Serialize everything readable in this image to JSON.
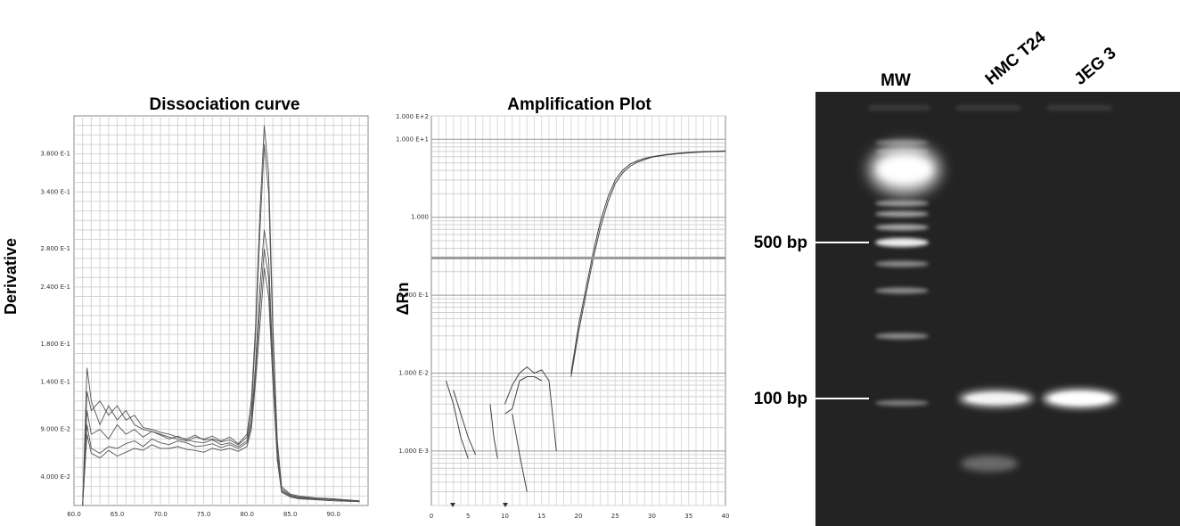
{
  "chart_data": [
    {
      "type": "line",
      "title": "Dissociation curve",
      "ylabel": "Derivative",
      "xlabel": "",
      "xlim": [
        60,
        94
      ],
      "ylim": [
        0.01,
        0.42
      ],
      "x_ticks": [
        "60.0",
        "65.0",
        "70.0",
        "75.0",
        "80.0",
        "85.0",
        "90.0"
      ],
      "x_tick_values": [
        60,
        65,
        70,
        75,
        80,
        85,
        90
      ],
      "y_ticks": [
        "4.000 E-2",
        "9.000 E-2",
        "1.400 E-1",
        "1.800 E-1",
        "2.400 E-1",
        "2.800 E-1",
        "3.400 E-1",
        "3.800 E-1"
      ],
      "y_tick_values": [
        0.04,
        0.09,
        0.14,
        0.18,
        0.24,
        0.28,
        0.34,
        0.38
      ],
      "grid": true,
      "series": [
        {
          "x": [
            61,
            61.5,
            62,
            63,
            64,
            65,
            66,
            67,
            68,
            69,
            70,
            71,
            72,
            73,
            74,
            75,
            76,
            77,
            78,
            79,
            80,
            80.5,
            81,
            81.5,
            82,
            82.5,
            83,
            83.5,
            84,
            85,
            86,
            88,
            90,
            93
          ],
          "y": [
            0.01,
            0.155,
            0.12,
            0.095,
            0.115,
            0.1,
            0.11,
            0.095,
            0.09,
            0.088,
            0.085,
            0.082,
            0.08,
            0.078,
            0.082,
            0.08,
            0.083,
            0.078,
            0.082,
            0.075,
            0.085,
            0.12,
            0.2,
            0.32,
            0.41,
            0.36,
            0.2,
            0.08,
            0.03,
            0.022,
            0.02,
            0.018,
            0.017,
            0.015
          ]
        },
        {
          "x": [
            61,
            61.5,
            62,
            63,
            64,
            65,
            66,
            67,
            68,
            69,
            70,
            71,
            72,
            73,
            74,
            75,
            76,
            77,
            78,
            79,
            80,
            80.5,
            81,
            81.5,
            82,
            82.5,
            83,
            83.5,
            84,
            85,
            86,
            88,
            90,
            93
          ],
          "y": [
            0.01,
            0.13,
            0.11,
            0.12,
            0.105,
            0.115,
            0.1,
            0.105,
            0.092,
            0.09,
            0.087,
            0.085,
            0.082,
            0.08,
            0.084,
            0.079,
            0.08,
            0.077,
            0.079,
            0.074,
            0.082,
            0.11,
            0.19,
            0.3,
            0.39,
            0.34,
            0.19,
            0.075,
            0.028,
            0.021,
            0.019,
            0.017,
            0.016,
            0.015
          ]
        },
        {
          "x": [
            61,
            61.5,
            62,
            63,
            64,
            65,
            66,
            67,
            68,
            69,
            70,
            71,
            72,
            73,
            74,
            75,
            76,
            77,
            78,
            79,
            80,
            80.5,
            81,
            81.5,
            82,
            82.5,
            83,
            83.5,
            84,
            85,
            86,
            88,
            90,
            93
          ],
          "y": [
            0.01,
            0.11,
            0.085,
            0.09,
            0.08,
            0.095,
            0.085,
            0.09,
            0.082,
            0.088,
            0.084,
            0.08,
            0.083,
            0.079,
            0.077,
            0.076,
            0.079,
            0.074,
            0.076,
            0.072,
            0.078,
            0.1,
            0.16,
            0.24,
            0.3,
            0.27,
            0.16,
            0.065,
            0.026,
            0.02,
            0.018,
            0.017,
            0.016,
            0.014
          ]
        },
        {
          "x": [
            61,
            61.5,
            62,
            63,
            64,
            65,
            66,
            67,
            68,
            69,
            70,
            71,
            72,
            73,
            74,
            75,
            76,
            77,
            78,
            79,
            80,
            80.5,
            81,
            81.5,
            82,
            82.5,
            83,
            83.5,
            84,
            85,
            86,
            88,
            90,
            93
          ],
          "y": [
            0.01,
            0.095,
            0.07,
            0.065,
            0.072,
            0.07,
            0.075,
            0.078,
            0.072,
            0.08,
            0.076,
            0.074,
            0.078,
            0.076,
            0.072,
            0.073,
            0.075,
            0.071,
            0.074,
            0.07,
            0.076,
            0.095,
            0.15,
            0.22,
            0.28,
            0.25,
            0.15,
            0.06,
            0.025,
            0.02,
            0.018,
            0.016,
            0.015,
            0.014
          ]
        },
        {
          "x": [
            61,
            61.5,
            62,
            63,
            64,
            65,
            66,
            67,
            68,
            69,
            70,
            71,
            72,
            73,
            74,
            75,
            76,
            77,
            78,
            79,
            80,
            80.5,
            81,
            81.5,
            82,
            82.5,
            83,
            83.5,
            84,
            85,
            86,
            88,
            90,
            93
          ],
          "y": [
            0.01,
            0.085,
            0.065,
            0.06,
            0.068,
            0.062,
            0.066,
            0.07,
            0.068,
            0.074,
            0.07,
            0.07,
            0.072,
            0.069,
            0.068,
            0.066,
            0.07,
            0.068,
            0.07,
            0.067,
            0.072,
            0.09,
            0.14,
            0.2,
            0.26,
            0.23,
            0.14,
            0.058,
            0.024,
            0.019,
            0.017,
            0.016,
            0.015,
            0.014
          ]
        }
      ]
    },
    {
      "type": "line",
      "title": "Amplification Plot",
      "ylabel": "ΔRn",
      "xlabel": "",
      "xlim": [
        0,
        40
      ],
      "ylim": [
        0.0002,
        20
      ],
      "y_scale": "log",
      "x_ticks": [
        "0",
        "5",
        "10",
        "15",
        "20",
        "25",
        "30",
        "35",
        "40"
      ],
      "x_tick_values": [
        0,
        5,
        10,
        15,
        20,
        25,
        30,
        35,
        40
      ],
      "y_ticks": [
        "1.000 E+2",
        "1.000 E+1",
        "1.000",
        "1.000 E-1",
        "1.000 E-2",
        "1.000 E-3"
      ],
      "y_tick_values": [
        100,
        10,
        1,
        0.1,
        0.01,
        0.001
      ],
      "threshold": 0.3,
      "grid": true,
      "series": [
        {
          "x": [
            19,
            20,
            21,
            22,
            23,
            24,
            25,
            26,
            27,
            28,
            29,
            30,
            32,
            34,
            36,
            38,
            40
          ],
          "y": [
            0.01,
            0.04,
            0.12,
            0.35,
            0.9,
            1.8,
            3.0,
            4.0,
            4.8,
            5.3,
            5.7,
            6.0,
            6.4,
            6.7,
            6.9,
            7.0,
            7.1
          ]
        },
        {
          "x": [
            19,
            20,
            21,
            22,
            23,
            24,
            25,
            26,
            27,
            28,
            29,
            30,
            32,
            34,
            36,
            38,
            40
          ],
          "y": [
            0.009,
            0.033,
            0.1,
            0.29,
            0.75,
            1.55,
            2.7,
            3.7,
            4.5,
            5.1,
            5.5,
            5.9,
            6.3,
            6.6,
            6.8,
            6.95,
            7.0
          ]
        },
        {
          "x": [
            2,
            3,
            4,
            5
          ],
          "y": [
            0.008,
            0.004,
            0.0015,
            0.0008
          ]
        },
        {
          "x": [
            3,
            4,
            5,
            6
          ],
          "y": [
            0.006,
            0.003,
            0.0015,
            0.0009
          ]
        },
        {
          "x": [
            8,
            8.5,
            9
          ],
          "y": [
            0.004,
            0.0015,
            0.0008
          ]
        },
        {
          "x": [
            10,
            11,
            12,
            13,
            14,
            15,
            16,
            17
          ],
          "y": [
            0.004,
            0.007,
            0.01,
            0.012,
            0.01,
            0.011,
            0.008,
            0.001
          ]
        },
        {
          "x": [
            10,
            11,
            12,
            13,
            14,
            15
          ],
          "y": [
            0.003,
            0.0035,
            0.008,
            0.009,
            0.009,
            0.008
          ]
        },
        {
          "x": [
            11,
            12,
            13
          ],
          "y": [
            0.003,
            0.0009,
            0.0003
          ]
        }
      ]
    },
    {
      "type": "gel",
      "lane_labels": [
        "MW",
        "HMC T24",
        "JEG 3"
      ],
      "marker_labels": [
        "500 bp",
        "100 bp"
      ]
    }
  ]
}
